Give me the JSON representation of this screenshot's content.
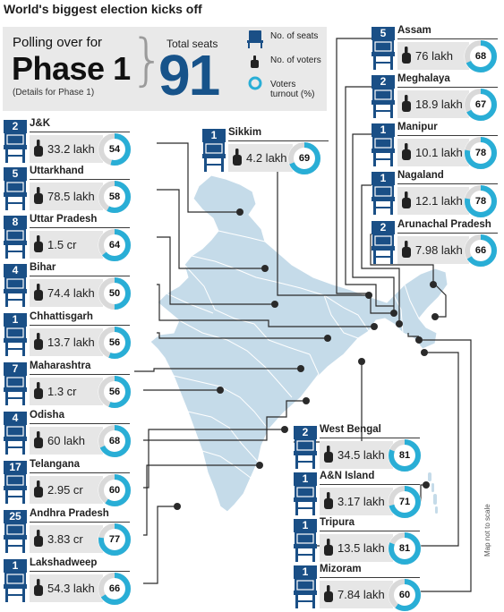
{
  "title": "World's biggest election kicks off",
  "summary": {
    "polling_line1": "Polling over for",
    "polling_line2": "Phase 1",
    "details": "(Details for Phase 1)",
    "total_seats_label": "Total seats",
    "total_seats": "91"
  },
  "legend": {
    "seats": "No. of seats",
    "voters": "No. of voters",
    "turnout": "Voters turnout (%)"
  },
  "colors": {
    "navy": "#1a4f86",
    "teal": "#29aed6",
    "map": "#c5dbe9",
    "panel": "#e9e9e9"
  },
  "note": "Map not to scale",
  "states": [
    {
      "name": "J&K",
      "seats": "2",
      "voters": "33.2 lakh",
      "turnout": 54
    },
    {
      "name": "Uttarkhand",
      "seats": "5",
      "voters": "78.5 lakh",
      "turnout": 58
    },
    {
      "name": "Uttar Pradesh",
      "seats": "8",
      "voters": "1.5 cr",
      "turnout": 64
    },
    {
      "name": "Bihar",
      "seats": "4",
      "voters": "74.4 lakh",
      "turnout": 50
    },
    {
      "name": "Chhattisgarh",
      "seats": "1",
      "voters": "13.7 lakh",
      "turnout": 56
    },
    {
      "name": "Maharashtra",
      "seats": "7",
      "voters": "1.3 cr",
      "turnout": 56
    },
    {
      "name": "Odisha",
      "seats": "4",
      "voters": "60 lakh",
      "turnout": 68
    },
    {
      "name": "Telangana",
      "seats": "17",
      "voters": "2.95 cr",
      "turnout": 60
    },
    {
      "name": "Andhra Pradesh",
      "seats": "25",
      "voters": "3.83 cr",
      "turnout": 77
    },
    {
      "name": "Lakshadweep",
      "seats": "1",
      "voters": "54.3 lakh",
      "turnout": 66
    },
    {
      "name": "Sikkim",
      "seats": "1",
      "voters": "4.2 lakh",
      "turnout": 69
    },
    {
      "name": "Assam",
      "seats": "5",
      "voters": "76 lakh",
      "turnout": 68
    },
    {
      "name": "Meghalaya",
      "seats": "2",
      "voters": "18.9 lakh",
      "turnout": 67
    },
    {
      "name": "Manipur",
      "seats": "1",
      "voters": "10.1 lakh",
      "turnout": 78
    },
    {
      "name": "Nagaland",
      "seats": "1",
      "voters": "12.1 lakh",
      "turnout": 78
    },
    {
      "name": "Arunachal Pradesh",
      "seats": "2",
      "voters": "7.98 lakh",
      "turnout": 66
    },
    {
      "name": "West Bengal",
      "seats": "2",
      "voters": "34.5 lakh",
      "turnout": 81
    },
    {
      "name": "A&N Island",
      "seats": "1",
      "voters": "3.17 lakh",
      "turnout": 71
    },
    {
      "name": "Tripura",
      "seats": "1",
      "voters": "13.5 lakh",
      "turnout": 81
    },
    {
      "name": "Mizoram",
      "seats": "1",
      "voters": "7.84 lakh",
      "turnout": 60
    }
  ]
}
